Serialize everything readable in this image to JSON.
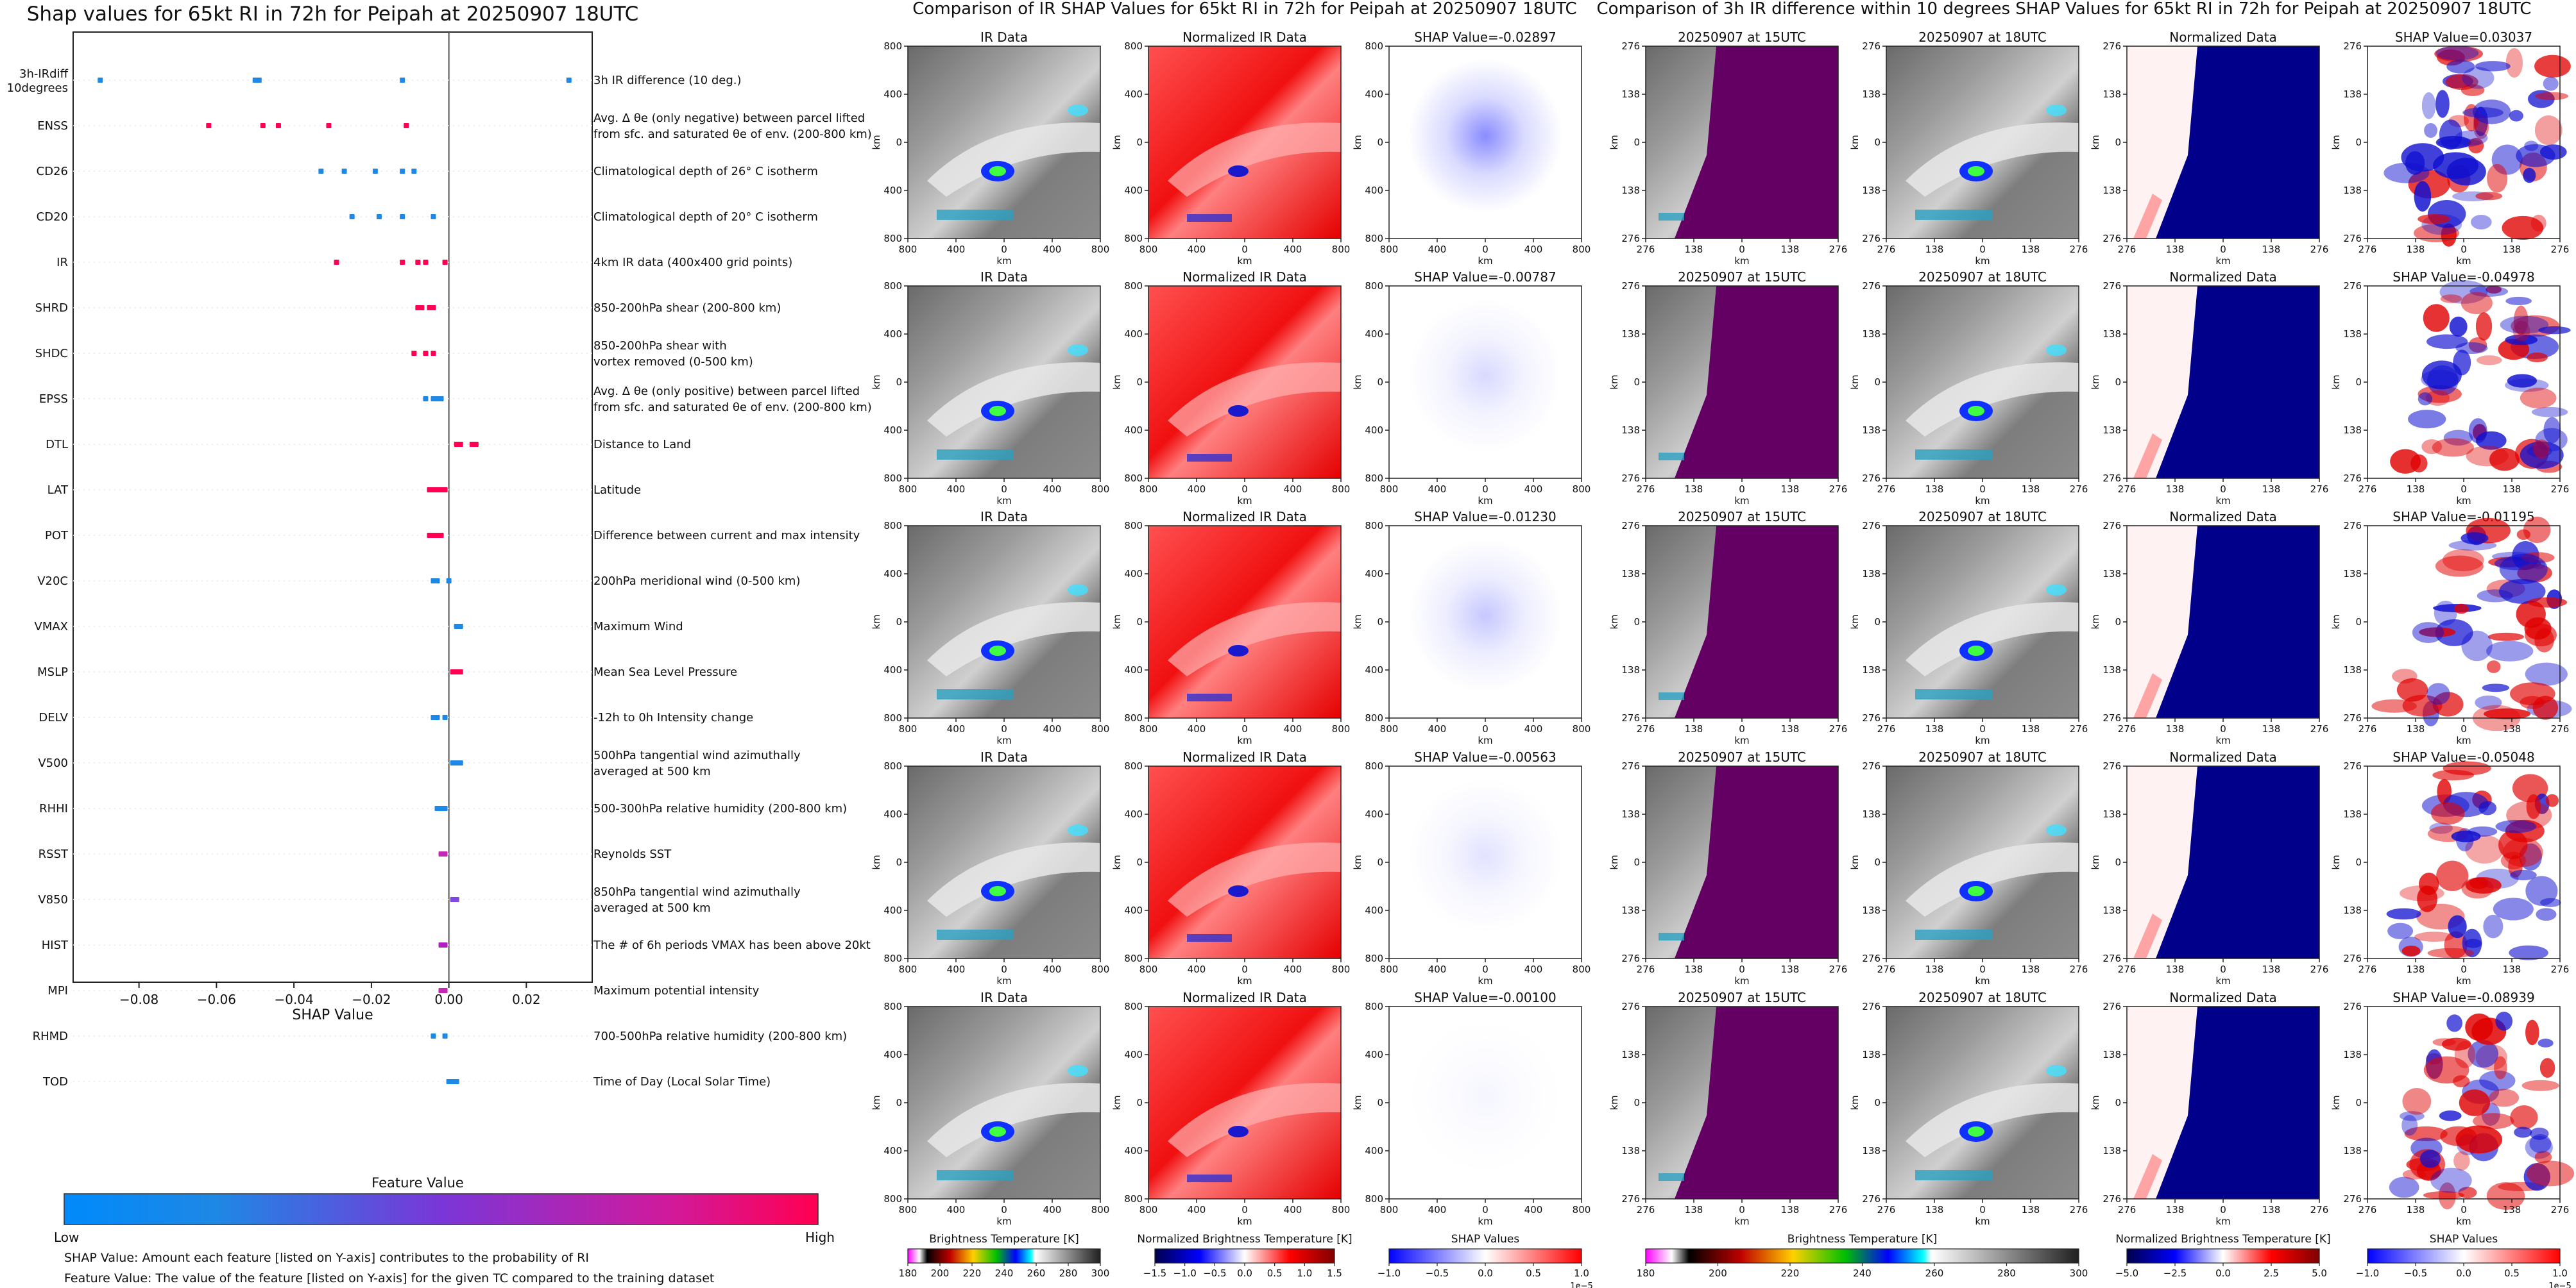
{
  "shap_panel": {
    "title": "Shap values for 65kt RI in 72h for Peipah at 20250907 18UTC",
    "xlabel": "SHAP Value",
    "xticks": [
      "−0.08",
      "−0.06",
      "−0.04",
      "−0.02",
      "0.00",
      "0.02"
    ],
    "tick_values": [
      -0.08,
      -0.06,
      -0.04,
      -0.02,
      0.0,
      0.02
    ],
    "xlim": [
      -0.097,
      0.037
    ],
    "colorbar_title": "Feature Value",
    "colorbar_low": "Low",
    "colorbar_high": "High",
    "note1": "SHAP Value: Amount each feature [listed on Y-axis] contributes to the probability of RI",
    "note2": "Feature Value: The value of the feature [listed on Y-axis] for the given TC compared to the training dataset"
  },
  "chart_data": {
    "type": "scatter",
    "title": "Shap values for 65kt RI in 72h for Peipah at 20250907 18UTC",
    "xlabel": "SHAP Value",
    "xlim": [
      -0.097,
      0.037
    ],
    "features": [
      {
        "code": [
          "3h-IRdiff",
          "10degrees"
        ],
        "desc": [
          "3h IR difference (10 deg.)"
        ],
        "color": "#1e88e5",
        "points": [
          -0.09,
          -0.05,
          -0.049,
          -0.012,
          0.031
        ]
      },
      {
        "code": [
          "ENSS"
        ],
        "desc": [
          "Avg. Δ θe (only negative) between parcel lifted",
          "from sfc. and saturated θe of env. (200-800 km)"
        ],
        "color": "#ff0052",
        "points": [
          -0.062,
          -0.048,
          -0.044,
          -0.031,
          -0.011
        ]
      },
      {
        "code": [
          "CD26"
        ],
        "desc": [
          "Climatological depth of 26° C isotherm"
        ],
        "color": "#1e88e5",
        "points": [
          -0.033,
          -0.027,
          -0.019,
          -0.012,
          -0.009
        ]
      },
      {
        "code": [
          "CD20"
        ],
        "desc": [
          "Climatological depth of 20° C isotherm"
        ],
        "color": "#1e88e5",
        "points": [
          -0.025,
          -0.018,
          -0.012,
          -0.004
        ]
      },
      {
        "code": [
          "IR"
        ],
        "desc": [
          "4km IR data (400x400 grid points)"
        ],
        "color": "#ff0052",
        "points": [
          -0.029,
          -0.012,
          -0.008,
          -0.006,
          -0.001
        ]
      },
      {
        "code": [
          "SHRD"
        ],
        "desc": [
          "850-200hPa shear (200-800 km)"
        ],
        "color": "#ff0052",
        "points": [
          -0.008,
          -0.007,
          -0.005,
          -0.004
        ]
      },
      {
        "code": [
          "SHDC"
        ],
        "desc": [
          "850-200hPa shear with",
          "vortex removed (0-500 km)"
        ],
        "color": "#ff0052",
        "points": [
          -0.009,
          -0.006,
          -0.004
        ]
      },
      {
        "code": [
          "EPSS"
        ],
        "desc": [
          "Avg. Δ θe (only positive) between parcel lifted",
          "from sfc. and saturated θe of env. (200-800 km)"
        ],
        "color": "#1e88e5",
        "points": [
          -0.006,
          -0.004,
          -0.003,
          -0.002
        ]
      },
      {
        "code": [
          "DTL"
        ],
        "desc": [
          "Distance to Land"
        ],
        "color": "#ff0052",
        "points": [
          0.002,
          0.003,
          0.006,
          0.007
        ]
      },
      {
        "code": [
          "LAT"
        ],
        "desc": [
          "Latitude"
        ],
        "color": "#ff0052",
        "points": [
          -0.005,
          -0.004,
          -0.003,
          -0.002,
          -0.001
        ]
      },
      {
        "code": [
          "POT"
        ],
        "desc": [
          "Difference between current and max intensity"
        ],
        "color": "#ff0052",
        "points": [
          -0.005,
          -0.004,
          -0.003,
          -0.002
        ]
      },
      {
        "code": [
          "V20C"
        ],
        "desc": [
          "200hPa meridional wind (0-500 km)"
        ],
        "color": "#1e88e5",
        "points": [
          -0.004,
          -0.003,
          0.0
        ]
      },
      {
        "code": [
          "VMAX"
        ],
        "desc": [
          "Maximum Wind"
        ],
        "color": "#1e88e5",
        "points": [
          0.002,
          0.003
        ]
      },
      {
        "code": [
          "MSLP"
        ],
        "desc": [
          "Mean Sea Level Pressure"
        ],
        "color": "#ff0052",
        "points": [
          0.001,
          0.002,
          0.003
        ]
      },
      {
        "code": [
          "DELV"
        ],
        "desc": [
          "-12h to 0h Intensity change"
        ],
        "color": "#1e88e5",
        "points": [
          -0.004,
          -0.003,
          -0.001
        ]
      },
      {
        "code": [
          "V500"
        ],
        "desc": [
          "500hPa tangential wind azimuthally",
          "averaged at 500 km"
        ],
        "color": "#1e88e5",
        "points": [
          0.001,
          0.002,
          0.003
        ]
      },
      {
        "code": [
          "RHHI"
        ],
        "desc": [
          "500-300hPa relative humidity (200-800 km)"
        ],
        "color": "#1e88e5",
        "points": [
          -0.003,
          -0.002,
          -0.001
        ]
      },
      {
        "code": [
          "RSST"
        ],
        "desc": [
          "Reynolds SST"
        ],
        "color": "#c427b4",
        "points": [
          -0.002,
          -0.001
        ]
      },
      {
        "code": [
          "V850"
        ],
        "desc": [
          "850hPa tangential wind azimuthally",
          "averaged at 500 km"
        ],
        "color": "#7a4ae0",
        "points": [
          0.001,
          0.002
        ]
      },
      {
        "code": [
          "HIST"
        ],
        "desc": [
          "The # of 6h periods VMAX has been above 20kt"
        ],
        "color": "#b01fc0",
        "points": [
          -0.002,
          -0.001
        ]
      },
      {
        "code": [
          "MPI"
        ],
        "desc": [
          "Maximum potential intensity"
        ],
        "color": "#c427b4",
        "points": [
          -0.002,
          -0.001
        ]
      },
      {
        "code": [
          "RHMD"
        ],
        "desc": [
          "700-500hPa relative humidity (200-800 km)"
        ],
        "color": "#1e88e5",
        "points": [
          -0.004,
          -0.001
        ]
      },
      {
        "code": [
          "TOD"
        ],
        "desc": [
          "Time of Day (Local Solar Time)"
        ],
        "color": "#1e88e5",
        "points": [
          0.0,
          0.001,
          0.002
        ]
      }
    ]
  },
  "ir_group": {
    "title": "Comparison of IR SHAP Values for 65kt RI in 72h for Peipah at 20250907 18UTC",
    "col_titles": [
      "IR Data",
      "Normalized IR Data"
    ],
    "shap_values": [
      "SHAP Value=-0.02897",
      "SHAP Value=-0.00787",
      "SHAP Value=-0.01230",
      "SHAP Value=-0.00563",
      "SHAP Value=-0.00100"
    ],
    "axis_label": "km",
    "xticks": [
      "800",
      "400",
      "0",
      "400",
      "800"
    ],
    "yticks": [
      "800",
      "400",
      "0",
      "400",
      "800"
    ],
    "colorbars": [
      {
        "label": "Brightness Temperature [K]",
        "ticks": [
          "180",
          "200",
          "220",
          "240",
          "260",
          "280",
          "300"
        ],
        "offset": ""
      },
      {
        "label": "Normalized Brightness Temperature [K]",
        "ticks": [
          "−1.5",
          "−1.0",
          "−0.5",
          "0.0",
          "0.5",
          "1.0",
          "1.5"
        ],
        "offset": ""
      },
      {
        "label": "SHAP Values",
        "ticks": [
          "−1.0",
          "−0.5",
          "0.0",
          "0.5",
          "1.0"
        ],
        "offset": "1e−5"
      }
    ]
  },
  "diff_group": {
    "title": "Comparison of 3h IR difference within 10 degrees SHAP Values for 65kt RI in 72h for Peipah at 20250907 18UTC",
    "col_titles": [
      "20250907 at 15UTC",
      "20250907 at 18UTC",
      "Normalized Data"
    ],
    "shap_values": [
      "SHAP Value=0.03037",
      "SHAP Value=-0.04978",
      "SHAP Value=-0.01195",
      "SHAP Value=-0.05048",
      "SHAP Value=-0.08939"
    ],
    "axis_label": "km",
    "xticks": [
      "276",
      "138",
      "0",
      "138",
      "276"
    ],
    "yticks": [
      "276",
      "138",
      "0",
      "138",
      "276"
    ],
    "colorbars": [
      {
        "label": "Brightness Temperature [K]",
        "ticks": [
          "180",
          "200",
          "220",
          "240",
          "260",
          "280",
          "300"
        ],
        "offset": ""
      },
      {
        "label": "Normalized Brightness Temperature [K]",
        "ticks": [
          "−5.0",
          "−2.5",
          "0.0",
          "2.5",
          "5.0"
        ],
        "offset": ""
      },
      {
        "label": "SHAP Values",
        "ticks": [
          "−1.0",
          "−0.5",
          "0.0",
          "0.5",
          "1.0"
        ],
        "offset": "1e−5"
      }
    ]
  }
}
